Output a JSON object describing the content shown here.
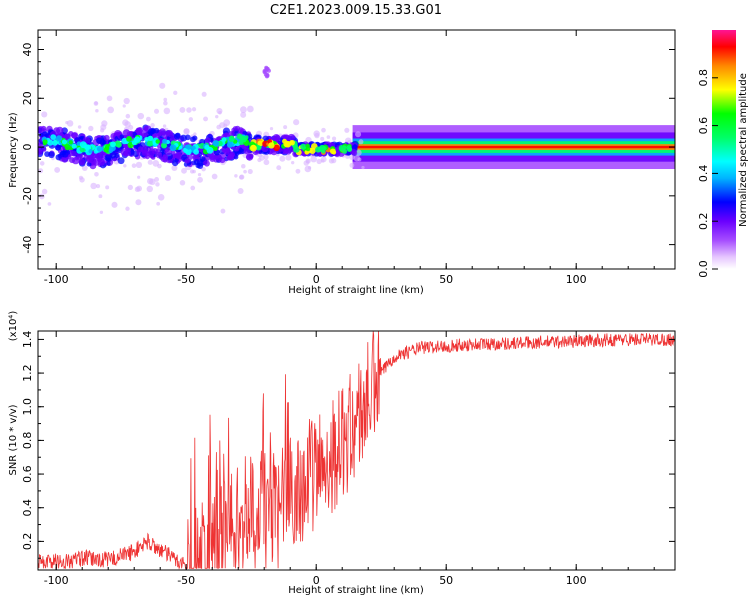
{
  "title": "C2E1.2023.009.15.33.G01",
  "chart_data": [
    {
      "type": "heatmap",
      "xlabel": "Height of straight line (km)",
      "ylabel": "Frequency (Hz)",
      "xlim": [
        -107,
        138
      ],
      "ylim": [
        -50,
        48
      ],
      "xticks": [
        -100,
        -50,
        0,
        50,
        100
      ],
      "yticks": [
        -40,
        -20,
        0,
        20,
        40
      ],
      "colorbar": {
        "label": "Normalized spectral amplitude",
        "range": [
          0,
          1
        ],
        "ticks": [
          0.0,
          0.2,
          0.4,
          0.6,
          0.8
        ]
      }
    },
    {
      "type": "line",
      "xlabel": "Height of straight line (km)",
      "ylabel": "SNR (10 * v/v)",
      "multiplier": "(x10⁴)",
      "xlim": [
        -107,
        138
      ],
      "ylim": [
        0.03,
        1.45
      ],
      "xticks": [
        -100,
        -50,
        0,
        50,
        100
      ],
      "yticks": [
        0.2,
        0.4,
        0.6,
        0.8,
        1.0,
        1.2,
        1.4
      ],
      "color": "#ee3333",
      "trend": {
        "x": [
          -107,
          -95,
          -90,
          -80,
          -70,
          -65,
          -60,
          -55,
          -50,
          -45,
          -40,
          -35,
          -30,
          -25,
          -20,
          -15,
          -10,
          -5,
          0,
          5,
          10,
          15,
          20,
          25,
          30,
          40,
          60,
          80,
          100,
          120,
          138
        ],
        "y": [
          0.08,
          0.08,
          0.1,
          0.09,
          0.14,
          0.2,
          0.15,
          0.1,
          0.06,
          0.1,
          0.22,
          0.3,
          0.36,
          0.4,
          0.45,
          0.38,
          0.5,
          0.55,
          0.62,
          0.7,
          0.78,
          0.9,
          1.05,
          1.2,
          1.3,
          1.35,
          1.37,
          1.38,
          1.39,
          1.4,
          1.4
        ]
      }
    }
  ]
}
